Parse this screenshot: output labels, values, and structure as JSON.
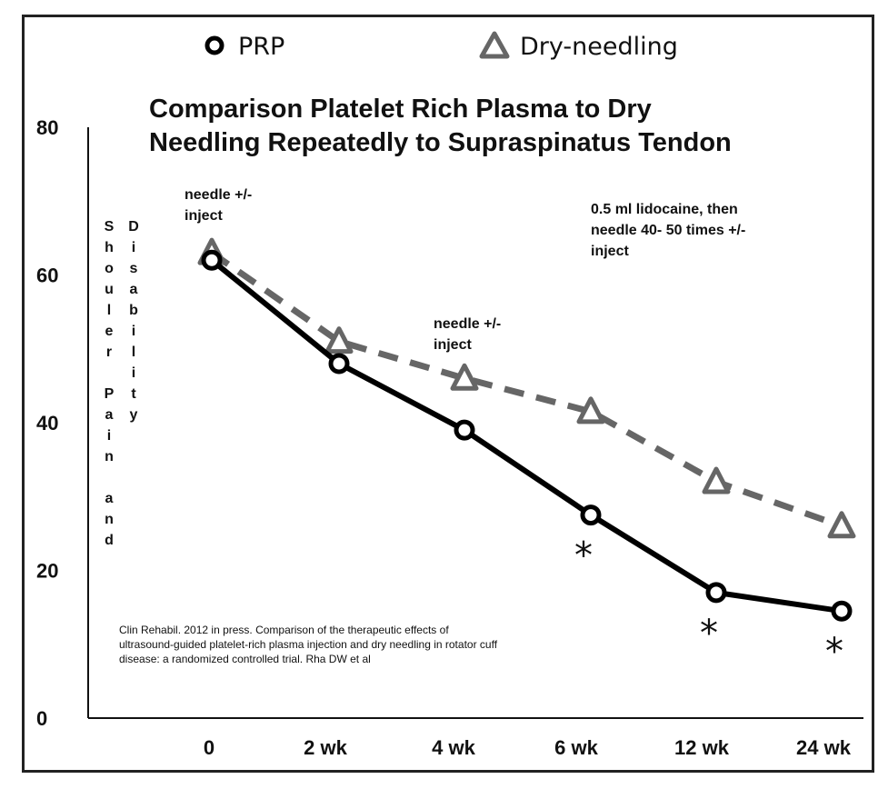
{
  "legend": [
    {
      "label": "PRP",
      "marker": "circle",
      "color": "#000000"
    },
    {
      "label": "Dry-needling",
      "marker": "triangle",
      "color": "#666666"
    }
  ],
  "chart_data": {
    "type": "line",
    "title_lines": [
      "Comparison Platelet Rich Plasma to Dry",
      "Needling Repeatedly to Supraspinatus Tendon"
    ],
    "ylabel_columns": [
      "Shouler Pain and",
      "Disability"
    ],
    "categories": [
      "0",
      "2 wk",
      "4 wk",
      "6 wk",
      "12 wk",
      "24 wk"
    ],
    "y_ticks": [
      0,
      20,
      40,
      60,
      80
    ],
    "ylim": [
      0,
      80
    ],
    "series": [
      {
        "name": "PRP",
        "values": [
          62,
          48,
          39,
          27.5,
          17,
          14.5
        ],
        "color": "#000000",
        "style": "solid",
        "marker": "circle"
      },
      {
        "name": "Dry-needling",
        "values": [
          63,
          51,
          46,
          41.5,
          32,
          26
        ],
        "color": "#666666",
        "style": "dashed",
        "marker": "triangle"
      }
    ],
    "significance_marks": [
      {
        "category_index": 3,
        "label": "*"
      },
      {
        "category_index": 4,
        "label": "*"
      },
      {
        "category_index": 5,
        "label": "*"
      }
    ],
    "annotations": [
      {
        "id": "a1",
        "lines": [
          "needle +/-",
          "inject"
        ]
      },
      {
        "id": "a2",
        "lines": [
          "needle +/-",
          "inject"
        ]
      },
      {
        "id": "a3",
        "lines": [
          "0.5 ml lidocaine, then",
          "needle 40- 50 times +/-",
          "inject"
        ]
      }
    ],
    "citation_lines": [
      "Clin Rehabil. 2012 in press. Comparison of the therapeutic effects of",
      "ultrasound-guided platelet-rich plasma injection and dry needling in rotator cuff",
      "disease: a randomized controlled trial. Rha DW et al"
    ],
    "grid": false,
    "legend_position": "top"
  }
}
